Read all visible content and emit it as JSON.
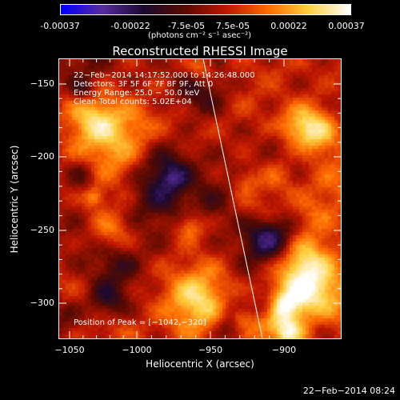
{
  "colorbar": {
    "ticks": [
      "-0.00037",
      "-0.00022",
      "-7.5e-05",
      "7.5e-05",
      "0.00022",
      "0.00037"
    ],
    "unit_label": "(photons cm⁻² s⁻¹ asec⁻²)"
  },
  "plot": {
    "title": "Reconstructed RHESSI Image",
    "xlabel": "Heliocentric X (arcsec)",
    "ylabel": "Heliocentric Y (arcsec)",
    "x_ticks": [
      "−1050",
      "−1000",
      "−950",
      "−900"
    ],
    "y_ticks": [
      "−150",
      "−200",
      "−250",
      "−300"
    ],
    "info_lines": [
      "22−Feb−2014 14:17:52.000 to 14:26:48.000",
      "Detectors: 3F 5F 6F 7F 8F 9F, Att 0",
      "Energy Range: 25.0 − 50.0 keV",
      "Clean     Total counts: 5.02E+04"
    ],
    "peak_text": "Position of Peak = [−1042,−320]"
  },
  "footer": {
    "timestamp": "22−Feb−2014 08:24"
  },
  "colors": {
    "background": "#000000",
    "colormap": [
      "#0000ff",
      "#5a2ca0",
      "#1a0a30",
      "#5a0a00",
      "#c01800",
      "#ff6a00",
      "#ffd040",
      "#ffffff"
    ],
    "limb_line": "#ffffff"
  }
}
